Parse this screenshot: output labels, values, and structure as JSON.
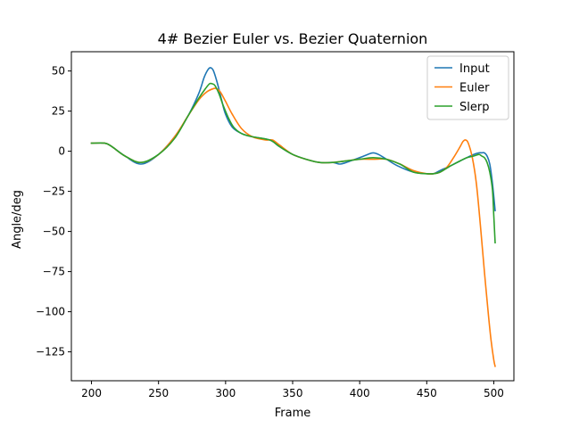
{
  "chart_data": {
    "type": "line",
    "title": "4# Bezier Euler vs. Bezier Quaternion",
    "xlabel": "Frame",
    "ylabel": "Angle/deg",
    "xlim": [
      185,
      515
    ],
    "ylim": [
      -143,
      62
    ],
    "xticks": [
      200,
      250,
      300,
      350,
      400,
      450,
      500
    ],
    "yticks": [
      50,
      25,
      0,
      -25,
      -50,
      -75,
      -100,
      -125
    ],
    "grid": false,
    "legend": {
      "position": "top-right"
    },
    "series": [
      {
        "name": "Input",
        "color": "#1f77b4",
        "x": [
          200,
          210,
          215,
          225,
          237,
          250,
          262,
          272,
          280,
          284,
          287,
          289,
          291,
          294,
          297,
          300,
          305,
          312,
          320,
          333,
          340,
          350,
          360,
          370,
          380,
          385,
          390,
          400,
          406,
          410,
          414,
          420,
          428,
          440,
          450,
          455,
          460,
          468,
          475,
          480,
          485,
          489,
          491,
          493,
          495,
          497,
          499,
          501
        ],
        "y": [
          5,
          5,
          3,
          -3,
          -8,
          -2,
          9,
          22,
          36,
          46,
          51,
          52,
          50,
          42,
          32,
          23,
          15,
          11,
          9,
          7,
          3,
          -2,
          -5,
          -7,
          -7,
          -8,
          -7,
          -4,
          -2,
          -1,
          -2,
          -5,
          -9,
          -13,
          -14,
          -14,
          -12,
          -9,
          -6,
          -4,
          -2,
          -1,
          -1,
          -1,
          -3,
          -8,
          -20,
          -37
        ]
      },
      {
        "name": "Euler",
        "color": "#ff7f0e",
        "x": [
          200,
          210,
          215,
          225,
          237,
          250,
          262,
          272,
          280,
          286,
          291,
          293,
          296,
          300,
          305,
          312,
          320,
          330,
          335,
          340,
          350,
          360,
          370,
          380,
          390,
          400,
          410,
          420,
          430,
          440,
          450,
          455,
          460,
          465,
          470,
          475,
          477,
          479,
          481,
          484,
          487,
          490,
          493,
          496,
          498,
          500,
          501
        ],
        "y": [
          5,
          5,
          3,
          -3,
          -7,
          -2,
          9,
          22,
          32,
          37,
          39,
          39,
          37,
          31,
          23,
          14,
          9,
          7,
          7,
          4,
          -2,
          -5,
          -7,
          -7,
          -6,
          -5,
          -5,
          -5,
          -8,
          -12,
          -14,
          -14,
          -13,
          -10,
          -4,
          3,
          6,
          7,
          5,
          -4,
          -20,
          -46,
          -75,
          -102,
          -118,
          -130,
          -134
        ]
      },
      {
        "name": "Slerp",
        "color": "#2ca02c",
        "x": [
          200,
          210,
          215,
          225,
          237,
          250,
          262,
          272,
          280,
          285,
          288,
          290,
          292,
          295,
          298,
          302,
          306,
          312,
          320,
          333,
          340,
          350,
          360,
          370,
          380,
          390,
          400,
          410,
          420,
          430,
          440,
          450,
          455,
          460,
          468,
          475,
          480,
          485,
          489,
          491,
          493,
          495,
          497,
          499,
          500,
          501
        ],
        "y": [
          5,
          5,
          3,
          -3,
          -7,
          -2,
          8,
          22,
          33,
          39,
          42,
          42,
          41,
          36,
          29,
          21,
          15,
          11,
          9,
          7,
          3,
          -2,
          -5,
          -7,
          -7,
          -6,
          -5,
          -4,
          -5,
          -8,
          -13,
          -14,
          -14,
          -13,
          -9,
          -6,
          -4,
          -3,
          -2,
          -3,
          -4,
          -7,
          -13,
          -24,
          -40,
          -57
        ]
      }
    ]
  }
}
